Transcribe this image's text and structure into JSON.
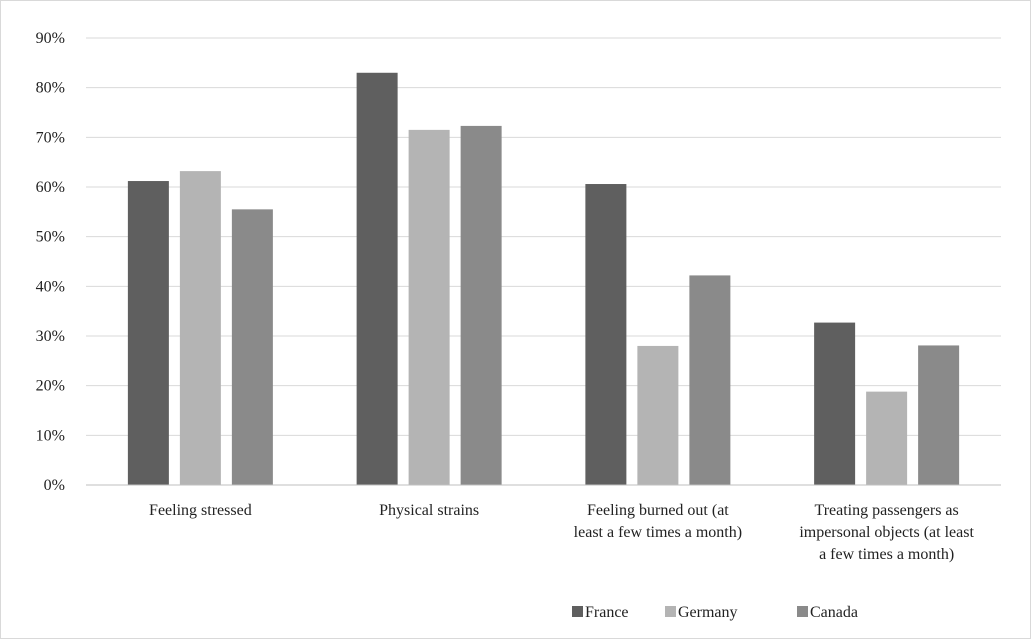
{
  "chart_data": {
    "type": "bar",
    "categories": [
      [
        "Feeling stressed"
      ],
      [
        "Physical strains"
      ],
      [
        "Feeling burned out (at",
        "least a few times a month)"
      ],
      [
        "Treating passengers as",
        "impersonal objects (at least",
        "a few times a month)"
      ]
    ],
    "series": [
      {
        "name": "France",
        "color": "#5f5f5f",
        "values": [
          61.2,
          83.0,
          60.6,
          32.7
        ]
      },
      {
        "name": "Germany",
        "color": "#b4b4b4",
        "values": [
          63.2,
          71.5,
          28.0,
          18.8
        ]
      },
      {
        "name": "Canada",
        "color": "#8a8a8a",
        "values": [
          55.5,
          72.3,
          42.2,
          28.1
        ]
      }
    ],
    "ylim": [
      0,
      90
    ],
    "yticks": [
      0,
      10,
      20,
      30,
      40,
      50,
      60,
      70,
      80,
      90
    ],
    "ytick_labels": [
      "0%",
      "10%",
      "20%",
      "30%",
      "40%",
      "50%",
      "60%",
      "70%",
      "80%",
      "90%"
    ],
    "grid": true,
    "legend_position": "bottom-right",
    "title": "",
    "xlabel": "",
    "ylabel": ""
  }
}
